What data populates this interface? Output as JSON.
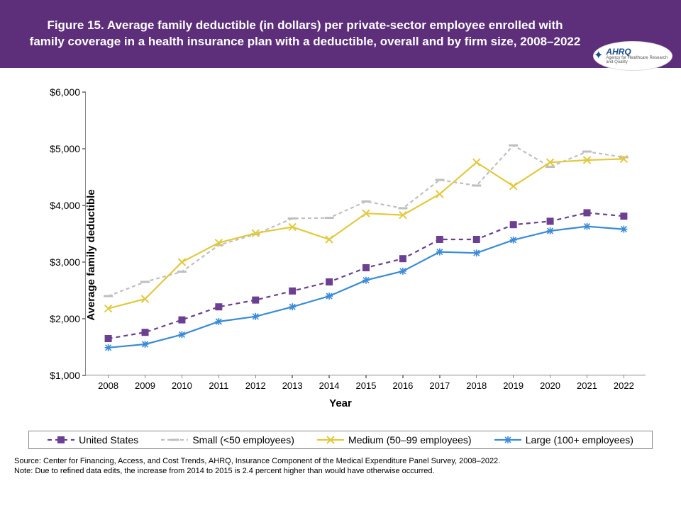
{
  "header": {
    "title": "Figure 15. Average family deductible (in dollars) per private-sector employee enrolled with family coverage in a health insurance plan with a deductible, overall and by firm size, 2008–2022",
    "banner_bg": "#5d2e7a",
    "logo_brand": "AHRQ",
    "logo_sub": "Agency for Healthcare Research and Quality"
  },
  "chart": {
    "type": "line",
    "x_label": "Year",
    "y_label": "Average family deductible",
    "x_categories": [
      "2008",
      "2009",
      "2010",
      "2011",
      "2012",
      "2013",
      "2014",
      "2015",
      "2016",
      "2017",
      "2018",
      "2019",
      "2020",
      "2021",
      "2022"
    ],
    "y_ticks": [
      1000,
      2000,
      3000,
      4000,
      5000,
      6000
    ],
    "y_tick_labels": [
      "$1,000",
      "$2,000",
      "$3,000",
      "$4,000",
      "$5,000",
      "$6,000"
    ],
    "ylim": [
      1000,
      6000
    ],
    "axis_color": "#888888",
    "tick_fontsize": 14,
    "axis_title_fontsize": 15,
    "line_width": 2.2,
    "marker_size": 5,
    "series": [
      {
        "name": "United States",
        "color": "#6b3f91",
        "dash": "6,5",
        "marker": "square",
        "values": [
          1650,
          1760,
          1980,
          2210,
          2330,
          2490,
          2650,
          2900,
          3060,
          3400,
          3400,
          3660,
          3720,
          3870,
          3810
        ]
      },
      {
        "name": "Small (<50 employees)",
        "color": "#bfbfbf",
        "dash": "5,4",
        "marker": "dash",
        "values": [
          2400,
          2650,
          2830,
          3300,
          3490,
          3770,
          3780,
          4070,
          3950,
          4450,
          4350,
          5060,
          4680,
          4950,
          4850
        ]
      },
      {
        "name": "Medium (50–99 employees)",
        "color": "#e2c93e",
        "dash": "none",
        "marker": "x",
        "values": [
          2180,
          2350,
          3000,
          3340,
          3510,
          3620,
          3400,
          3860,
          3830,
          4200,
          4760,
          4340,
          4760,
          4800,
          4820
        ]
      },
      {
        "name": "Large (100+ employees)",
        "color": "#3a8bd8",
        "dash": "none",
        "marker": "star",
        "values": [
          1490,
          1550,
          1720,
          1950,
          2040,
          2210,
          2400,
          2680,
          2840,
          3180,
          3160,
          3390,
          3550,
          3630,
          3580
        ]
      }
    ]
  },
  "footnotes": {
    "source": "Source: Center for Financing, Access, and Cost Trends, AHRQ, Insurance Component of the Medical Expenditure Panel Survey,  2008–2022.",
    "note": "Note: Due to refined data edits, the increase from 2014 to 2015 is 2.4 percent higher than would have otherwise occurred."
  }
}
